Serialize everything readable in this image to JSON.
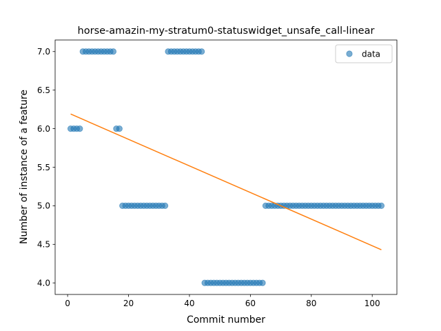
{
  "chart_data": {
    "type": "scatter",
    "title": "horse-amazin-my-stratum0-statuswidget_unsafe_call-linear",
    "xlabel": "Commit number",
    "ylabel": "Number of instance of a feature",
    "xlim": [
      -4.1,
      108.1
    ],
    "ylim": [
      3.85,
      7.15
    ],
    "xticks": [
      0,
      20,
      40,
      60,
      80,
      100
    ],
    "xtick_labels": [
      "0",
      "20",
      "40",
      "60",
      "80",
      "100"
    ],
    "yticks": [
      4.0,
      4.5,
      5.0,
      5.5,
      6.0,
      6.5,
      7.0
    ],
    "ytick_labels": [
      "4.0",
      "4.5",
      "5.0",
      "5.5",
      "6.0",
      "6.5",
      "7.0"
    ],
    "legend": {
      "position": "upper right",
      "entries": [
        "data"
      ]
    },
    "grid": false,
    "series": [
      {
        "name": "data",
        "kind": "scatter",
        "color": "#1f77b4",
        "points": [
          [
            1,
            6
          ],
          [
            2,
            6
          ],
          [
            3,
            6
          ],
          [
            4,
            6
          ],
          [
            5,
            7
          ],
          [
            6,
            7
          ],
          [
            7,
            7
          ],
          [
            8,
            7
          ],
          [
            9,
            7
          ],
          [
            10,
            7
          ],
          [
            11,
            7
          ],
          [
            12,
            7
          ],
          [
            13,
            7
          ],
          [
            14,
            7
          ],
          [
            15,
            7
          ],
          [
            16,
            6
          ],
          [
            17,
            6
          ],
          [
            18,
            5
          ],
          [
            19,
            5
          ],
          [
            20,
            5
          ],
          [
            21,
            5
          ],
          [
            22,
            5
          ],
          [
            23,
            5
          ],
          [
            24,
            5
          ],
          [
            25,
            5
          ],
          [
            26,
            5
          ],
          [
            27,
            5
          ],
          [
            28,
            5
          ],
          [
            29,
            5
          ],
          [
            30,
            5
          ],
          [
            31,
            5
          ],
          [
            32,
            5
          ],
          [
            33,
            7
          ],
          [
            34,
            7
          ],
          [
            35,
            7
          ],
          [
            36,
            7
          ],
          [
            37,
            7
          ],
          [
            38,
            7
          ],
          [
            39,
            7
          ],
          [
            40,
            7
          ],
          [
            41,
            7
          ],
          [
            42,
            7
          ],
          [
            43,
            7
          ],
          [
            44,
            7
          ],
          [
            45,
            4
          ],
          [
            46,
            4
          ],
          [
            47,
            4
          ],
          [
            48,
            4
          ],
          [
            49,
            4
          ],
          [
            50,
            4
          ],
          [
            51,
            4
          ],
          [
            52,
            4
          ],
          [
            53,
            4
          ],
          [
            54,
            4
          ],
          [
            55,
            4
          ],
          [
            56,
            4
          ],
          [
            57,
            4
          ],
          [
            58,
            4
          ],
          [
            59,
            4
          ],
          [
            60,
            4
          ],
          [
            61,
            4
          ],
          [
            62,
            4
          ],
          [
            63,
            4
          ],
          [
            64,
            4
          ],
          [
            65,
            5
          ],
          [
            66,
            5
          ],
          [
            67,
            5
          ],
          [
            68,
            5
          ],
          [
            69,
            5
          ],
          [
            70,
            5
          ],
          [
            71,
            5
          ],
          [
            72,
            5
          ],
          [
            73,
            5
          ],
          [
            74,
            5
          ],
          [
            75,
            5
          ],
          [
            76,
            5
          ],
          [
            77,
            5
          ],
          [
            78,
            5
          ],
          [
            79,
            5
          ],
          [
            80,
            5
          ],
          [
            81,
            5
          ],
          [
            82,
            5
          ],
          [
            83,
            5
          ],
          [
            84,
            5
          ],
          [
            85,
            5
          ],
          [
            86,
            5
          ],
          [
            87,
            5
          ],
          [
            88,
            5
          ],
          [
            89,
            5
          ],
          [
            90,
            5
          ],
          [
            91,
            5
          ],
          [
            92,
            5
          ],
          [
            93,
            5
          ],
          [
            94,
            5
          ],
          [
            95,
            5
          ],
          [
            96,
            5
          ],
          [
            97,
            5
          ],
          [
            98,
            5
          ],
          [
            99,
            5
          ],
          [
            100,
            5
          ],
          [
            101,
            5
          ],
          [
            102,
            5
          ],
          [
            103,
            5
          ]
        ]
      },
      {
        "kind": "line",
        "color": "#ff7f0e",
        "points": [
          [
            1,
            6.19
          ],
          [
            103,
            4.43
          ]
        ]
      }
    ]
  }
}
